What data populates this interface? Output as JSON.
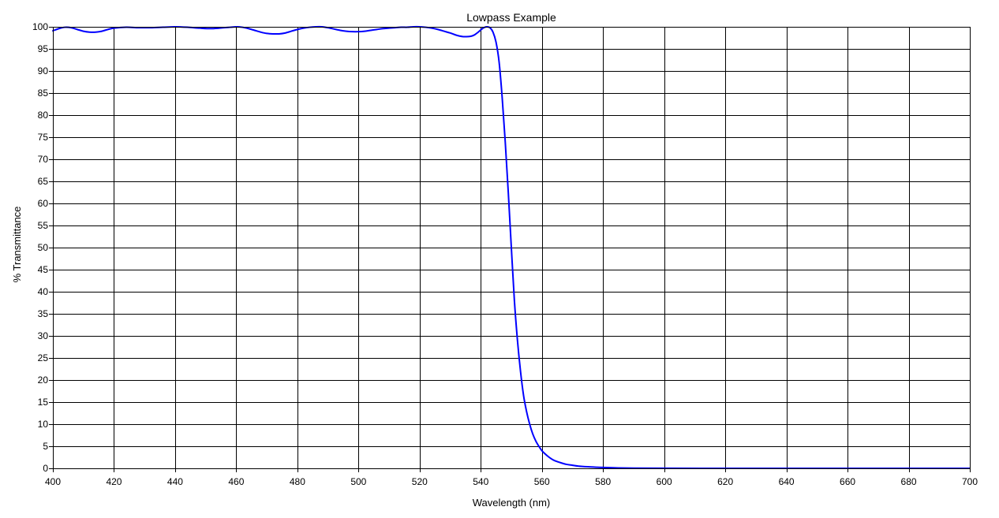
{
  "chart_data": {
    "type": "line",
    "title": "Lowpass Example",
    "xlabel": "Wavelength (nm)",
    "ylabel": "% Transmittance",
    "xlim": [
      400,
      700
    ],
    "ylim": [
      0,
      100
    ],
    "x_ticks": [
      400,
      420,
      440,
      460,
      480,
      500,
      520,
      540,
      560,
      580,
      600,
      620,
      640,
      660,
      680,
      700
    ],
    "y_ticks": [
      0,
      5,
      10,
      15,
      20,
      25,
      30,
      35,
      40,
      45,
      50,
      55,
      60,
      65,
      70,
      75,
      80,
      85,
      90,
      95,
      100
    ],
    "grid": true,
    "series": [
      {
        "color": "#0000ff",
        "x": [
          400,
          402,
          404,
          406,
          408,
          410,
          412,
          414,
          416,
          418,
          420,
          424,
          428,
          432,
          436,
          440,
          444,
          448,
          452,
          456,
          458,
          460,
          462,
          464,
          466,
          468,
          470,
          472,
          474,
          476,
          478,
          480,
          482,
          484,
          486,
          488,
          490,
          492,
          494,
          496,
          498,
          500,
          502,
          504,
          506,
          508,
          510,
          512,
          514,
          516,
          518,
          520,
          522,
          524,
          526,
          528,
          530,
          532,
          534,
          536,
          537,
          538,
          539,
          540,
          541,
          542,
          543,
          544,
          545,
          546,
          547,
          548,
          549,
          550,
          551,
          552,
          553,
          554,
          555,
          556,
          557,
          558,
          559,
          560,
          561,
          562,
          563,
          564,
          566,
          568,
          570,
          572,
          575,
          578,
          580,
          585,
          590,
          600,
          620,
          650,
          680,
          700
        ],
        "y": [
          99.1,
          99.6,
          99.9,
          99.8,
          99.4,
          99.0,
          98.8,
          98.8,
          99.0,
          99.4,
          99.7,
          99.9,
          99.8,
          99.8,
          99.9,
          100.0,
          99.9,
          99.7,
          99.6,
          99.8,
          99.9,
          100.0,
          99.9,
          99.6,
          99.2,
          98.8,
          98.5,
          98.4,
          98.4,
          98.6,
          99.0,
          99.4,
          99.7,
          99.9,
          100.0,
          100.0,
          99.8,
          99.5,
          99.2,
          99.0,
          98.9,
          98.9,
          99.0,
          99.2,
          99.4,
          99.6,
          99.7,
          99.8,
          99.9,
          99.9,
          100.0,
          100.0,
          99.9,
          99.7,
          99.4,
          99.0,
          98.6,
          98.1,
          97.8,
          97.8,
          97.9,
          98.2,
          98.7,
          99.3,
          99.8,
          100.0,
          99.8,
          98.8,
          96.5,
          92.0,
          84.0,
          74.0,
          62.5,
          50.0,
          38.0,
          29.0,
          22.0,
          16.5,
          12.8,
          10.0,
          7.8,
          6.2,
          5.0,
          4.0,
          3.3,
          2.7,
          2.2,
          1.8,
          1.3,
          0.9,
          0.7,
          0.5,
          0.35,
          0.25,
          0.2,
          0.1,
          0.05,
          0.02,
          0.0,
          0.0,
          0.0,
          0.0
        ]
      }
    ]
  }
}
